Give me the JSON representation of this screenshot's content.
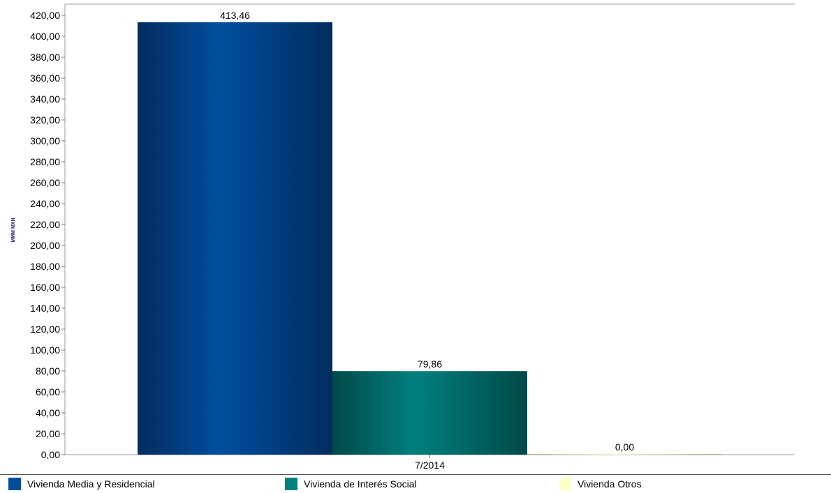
{
  "chart_data": {
    "type": "bar",
    "categories": [
      "7/2014"
    ],
    "series": [
      {
        "name": "Vivienda Media y Residencial",
        "values": [
          413.46
        ],
        "value_labels": [
          "413,46"
        ],
        "color": "#004f9f",
        "color_dark": "#022c5e"
      },
      {
        "name": "Vivienda de Interés Social",
        "values": [
          79.86
        ],
        "value_labels": [
          "79,86"
        ],
        "color": "#008080",
        "color_dark": "#004a48"
      },
      {
        "name": "Vivienda Otros",
        "values": [
          0.0
        ],
        "value_labels": [
          "0,00"
        ],
        "color": "#ffffcc",
        "color_dark": "#b0b090"
      }
    ],
    "ylabel": "MMM MXN",
    "ylim": [
      0,
      420
    ],
    "y_ticks": [
      0,
      20,
      40,
      60,
      80,
      100,
      120,
      140,
      160,
      180,
      200,
      220,
      240,
      260,
      280,
      300,
      320,
      340,
      360,
      380,
      400,
      420
    ],
    "y_tick_labels": [
      "0,00",
      "20,00",
      "40,00",
      "60,00",
      "80,00",
      "100,00",
      "120,00",
      "140,00",
      "160,00",
      "180,00",
      "200,00",
      "220,00",
      "240,00",
      "260,00",
      "280,00",
      "300,00",
      "320,00",
      "340,00",
      "360,00",
      "380,00",
      "400,00",
      "420,00"
    ],
    "grid": false,
    "legend_position": "bottom"
  }
}
